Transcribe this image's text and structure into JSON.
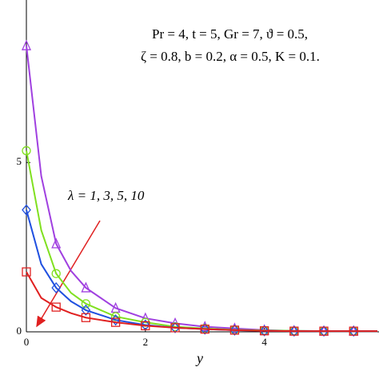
{
  "chart_data": {
    "type": "line",
    "x_label": "y",
    "annotations": [
      "Pr = 4, t = 5, Gr = 7, ϑ = 0.5,",
      "ζ = 0.8, b = 0.2, α = 0.5, K = 0.1.",
      "λ = 1, 3, 5, 10"
    ],
    "x": [
      0,
      0.25,
      0.5,
      0.75,
      1,
      1.5,
      2,
      2.5,
      3,
      3.5,
      4,
      4.5,
      5,
      5.5,
      5.9
    ],
    "series": [
      {
        "color": "#a040e0",
        "marker": "triangle",
        "values": [
          8.45,
          4.6,
          2.6,
          1.8,
          1.3,
          0.7,
          0.4,
          0.25,
          0.15,
          0.1,
          0.05,
          0.03,
          0.02,
          0.02,
          0.02
        ]
      },
      {
        "color": "#80e020",
        "marker": "circle",
        "values": [
          5.35,
          3.0,
          1.72,
          1.15,
          0.83,
          0.45,
          0.28,
          0.15,
          0.1,
          0.06,
          0.04,
          0.03,
          0.02,
          0.02,
          0.02
        ]
      },
      {
        "color": "#2050e0",
        "marker": "diamond",
        "values": [
          3.6,
          2.0,
          1.3,
          0.9,
          0.64,
          0.35,
          0.2,
          0.12,
          0.08,
          0.05,
          0.03,
          0.02,
          0.02,
          0.02,
          0.02
        ]
      },
      {
        "color": "#e02020",
        "marker": "square",
        "values": [
          1.77,
          1.0,
          0.73,
          0.55,
          0.42,
          0.28,
          0.18,
          0.12,
          0.08,
          0.05,
          0.03,
          0.02,
          0.02,
          0.02,
          0.02
        ]
      }
    ],
    "xlim": [
      0,
      5.9
    ],
    "ylim": [
      0,
      9.8
    ],
    "xticks": [
      0,
      2,
      4
    ],
    "yticks": [
      0,
      5
    ]
  }
}
